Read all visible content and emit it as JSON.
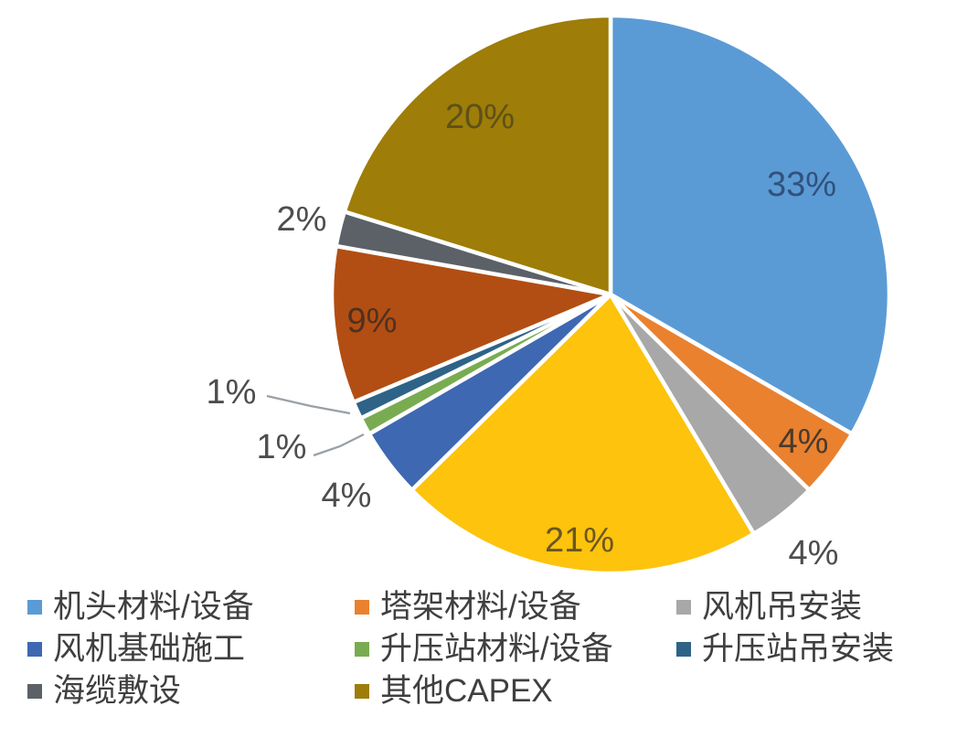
{
  "chart_data": {
    "type": "pie",
    "title": "",
    "unit": "percent",
    "start_angle_deg": 0,
    "direction": "clockwise",
    "grid": false,
    "legend_position": "bottom",
    "slices": [
      {
        "label": "机头材料/设备",
        "pct_label": "33%",
        "value": 33,
        "color": "#5B9BD5",
        "label_color": "#31517c",
        "placement": "inside"
      },
      {
        "label": "塔架材料/设备",
        "pct_label": "4%",
        "value": 4,
        "color": "#E9812F",
        "label_color": "#4a3a2c",
        "placement": "inside"
      },
      {
        "label": "风机吊安装",
        "pct_label": "4%",
        "value": 4,
        "color": "#A8A8A8",
        "label_color": "#4d4d4d",
        "placement": "outside"
      },
      {
        "label": "",
        "pct_label": "21%",
        "value": 21,
        "color": "#FDC30D",
        "label_color": "#6a5622",
        "placement": "inside"
      },
      {
        "label": "风机基础施工",
        "pct_label": "4%",
        "value": 4,
        "color": "#3E68B2",
        "label_color": "#4d4d4d",
        "placement": "outside"
      },
      {
        "label": "升压站材料/设备",
        "pct_label": "1%",
        "value": 1,
        "color": "#79AC51",
        "label_color": "#4d4d4d",
        "placement": "leader"
      },
      {
        "label": "升压站吊安装",
        "pct_label": "1%",
        "value": 1,
        "color": "#2E6387",
        "label_color": "#4d4d4d",
        "placement": "leader"
      },
      {
        "label": "",
        "pct_label": "9%",
        "value": 9,
        "color": "#B24E13",
        "label_color": "#4f3120",
        "placement": "inside"
      },
      {
        "label": "海缆敷设",
        "pct_label": "2%",
        "value": 2,
        "color": "#5C6168",
        "label_color": "#4d4d4d",
        "placement": "outside"
      },
      {
        "label": "其他CAPEX",
        "pct_label": "20%",
        "value": 20,
        "color": "#9E7D08",
        "label_color": "#5d5118",
        "placement": "inside"
      }
    ],
    "legend": [
      {
        "label": "机头材料/设备",
        "color": "#5B9BD5"
      },
      {
        "label": "塔架材料/设备",
        "color": "#E9812F"
      },
      {
        "label": "风机吊安装",
        "color": "#A8A8A8"
      },
      {
        "label": "风机基础施工",
        "color": "#3E68B2"
      },
      {
        "label": "升压站材料/设备",
        "color": "#79AC51"
      },
      {
        "label": "升压站吊安装",
        "color": "#2E6387"
      },
      {
        "label": "海缆敷设",
        "color": "#5C6168"
      },
      {
        "label": "其他CAPEX",
        "color": "#9E7D08"
      }
    ],
    "colors": {
      "background": "#ffffff",
      "slice_border": "#ffffff",
      "leader_line": "#9aa0a6"
    }
  }
}
